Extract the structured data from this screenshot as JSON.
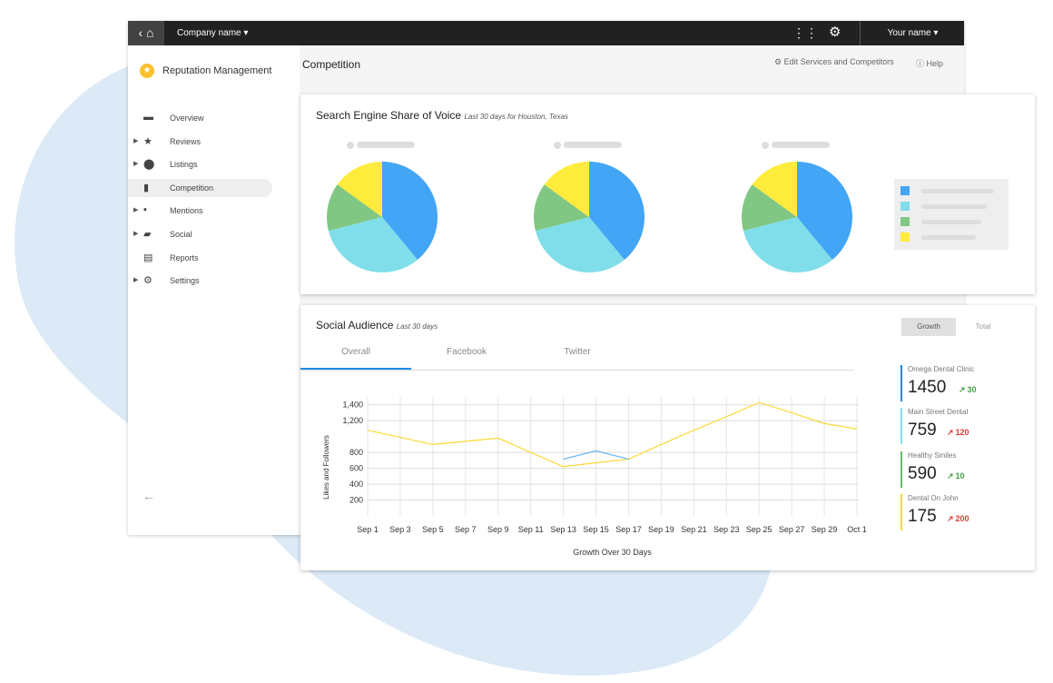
{
  "header": {
    "company": "Company name",
    "user": "Your name"
  },
  "sidebar": {
    "app_title": "Reputation Management",
    "nav": [
      "Overview",
      "Reviews",
      "Listings",
      "Competition",
      "Mentions",
      "Social",
      "Reports",
      "Settings"
    ]
  },
  "page": {
    "title": "Competition",
    "actions": [
      "Edit Services and Competitors",
      "Help"
    ]
  },
  "share_of_voice": {
    "title": "Search Engine Share of Voice",
    "subtitle": "Last 30 days for Houston, Texas",
    "chart_data": {
      "type": "pie",
      "colors": [
        "#42a5f5",
        "#80deea",
        "#81c784",
        "#ffeb3b"
      ],
      "pies": [
        {
          "values": [
            39,
            32,
            14,
            15
          ]
        },
        {
          "values": [
            39,
            32,
            14,
            15
          ]
        },
        {
          "values": [
            39,
            32,
            14,
            15
          ]
        }
      ]
    }
  },
  "social_audience": {
    "title": "Social Audience",
    "subtitle": "Last 30 days",
    "toggles": [
      "Growth",
      "Total"
    ],
    "tabs": [
      "Overall",
      "Facebook",
      "Twitter"
    ],
    "chart_data": {
      "type": "line",
      "y_label": "Likes and Followers",
      "x_label": "Growth Over 30 Days",
      "categories": [
        "Sep 1",
        "Sep 3",
        "Sep 5",
        "Sep 7",
        "Sep 9",
        "Sep 11",
        "Sep 13",
        "Sep 15",
        "Sep 17",
        "Sep 19",
        "Sep 21",
        "Sep 23",
        "Sep 25",
        "Sep 27",
        "Sep 29",
        "Oct 1"
      ],
      "series": [
        {
          "color": "#fdd835",
          "values": [
            1080,
            990,
            900,
            940,
            980,
            800,
            620,
            670,
            715,
            900,
            1080,
            1250,
            1430,
            1300,
            1165,
            1095
          ]
        },
        {
          "color": "#64b5f6",
          "values": [
            null,
            null,
            null,
            null,
            null,
            null,
            715,
            820,
            715,
            null,
            null,
            null,
            null,
            null,
            null,
            null
          ]
        }
      ],
      "ylim": [
        0,
        1500
      ],
      "yticks": [
        200,
        400,
        600,
        800,
        {
          "value": 1200,
          "label": "1,200"
        },
        {
          "value": 1400,
          "label": "1,400"
        }
      ],
      "grid": true
    },
    "stats": [
      {
        "name": "Omega Dental Clinic",
        "value": 1450,
        "change": 30,
        "trend": "up",
        "change_color": "#43a047",
        "color": "#1e88e5"
      },
      {
        "name": "Main Street Dental",
        "value": 759,
        "change": 120,
        "trend": "up",
        "change_color": "#e53935",
        "color": "#80deea"
      },
      {
        "name": "Healthy Smiles",
        "value": 590,
        "change": 10,
        "trend": "up",
        "change_color": "#43a047",
        "color": "#66bb6a"
      },
      {
        "name": "Dental On John",
        "value": 175,
        "change": 200,
        "trend": "up",
        "change_color": "#e53935",
        "color": "#fdd835"
      }
    ]
  }
}
